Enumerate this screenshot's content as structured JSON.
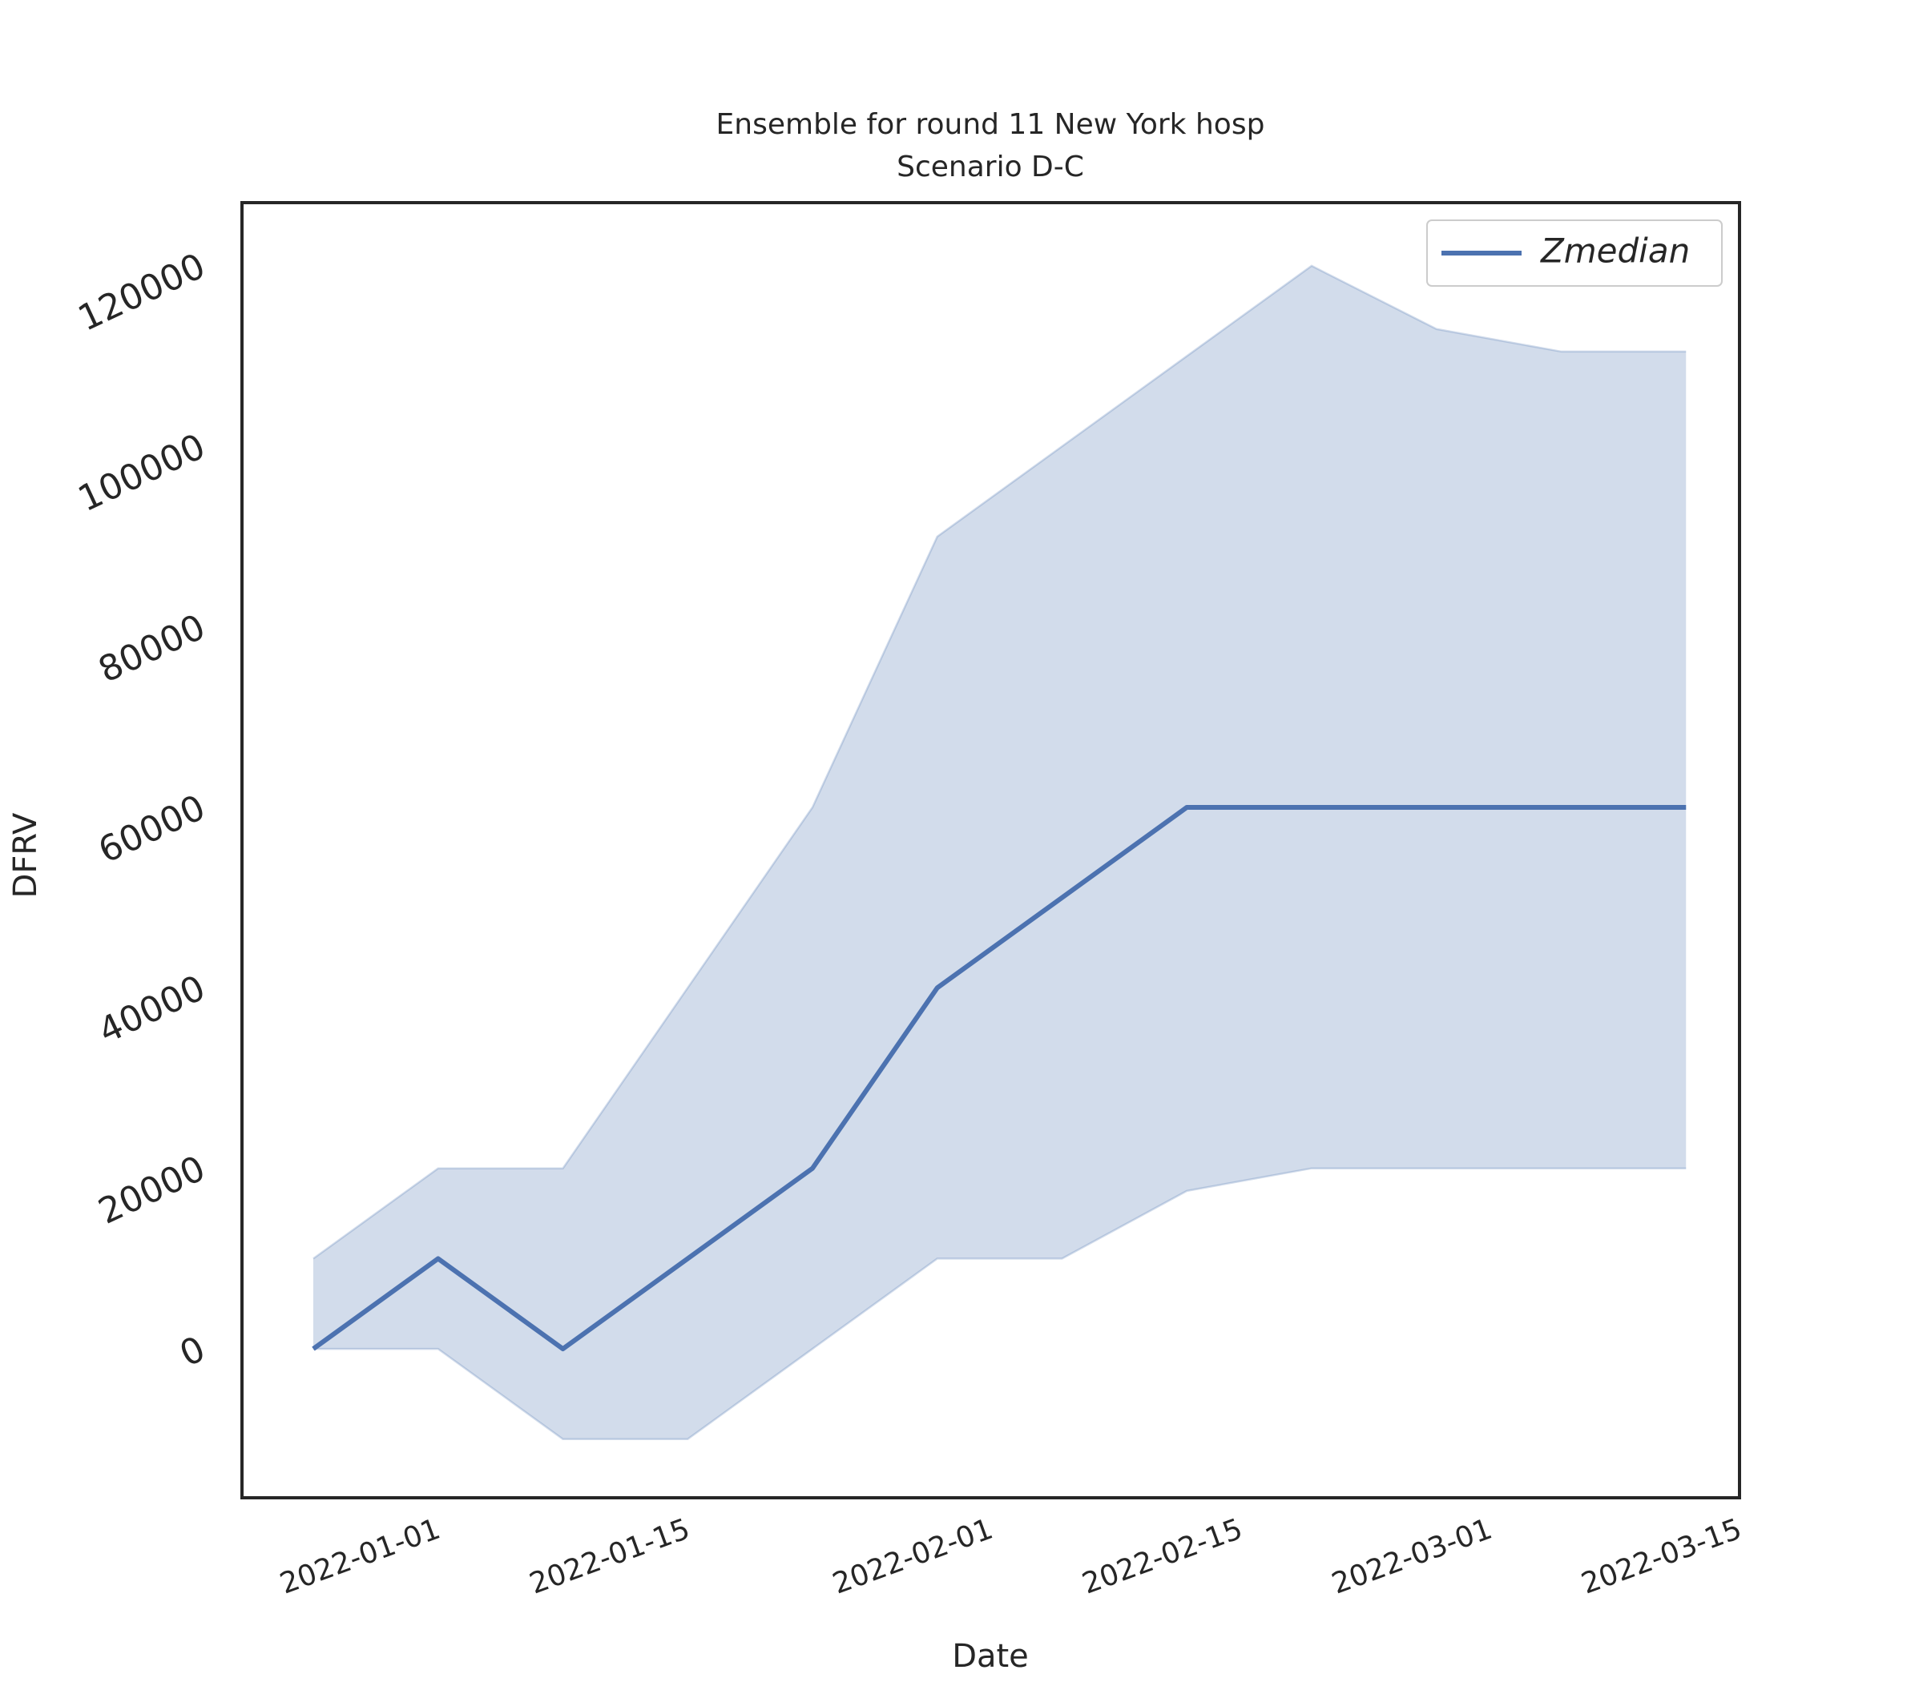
{
  "chart_data": {
    "type": "line",
    "title": "Ensemble for round 11 New York hosp",
    "subtitle": "Scenario D-C",
    "x_label": "Date",
    "y_label": "DFRV",
    "x": [
      "2021-12-28",
      "2022-01-04",
      "2022-01-11",
      "2022-01-18",
      "2022-01-25",
      "2022-02-01",
      "2022-02-08",
      "2022-02-15",
      "2022-02-22",
      "2022-03-01",
      "2022-03-08",
      "2022-03-15"
    ],
    "series": [
      {
        "name": "Zmedian",
        "color": "#4c72b0",
        "values": [
          0,
          10000,
          0,
          10000,
          20000,
          40000,
          50000,
          60000,
          60000,
          60000,
          60000,
          60000
        ]
      }
    ],
    "band": {
      "color": "#4c72b0",
      "upper": [
        10000,
        20000,
        20000,
        40000,
        60000,
        90000,
        100000,
        110000,
        120000,
        113000,
        110500,
        110500
      ],
      "lower": [
        0,
        0,
        -10000,
        -10000,
        0,
        10000,
        10000,
        17500,
        20000,
        20000,
        20000,
        20000
      ]
    },
    "xlim": [
      "2021-12-24",
      "2022-03-18"
    ],
    "xticks": [
      "2022-01-01",
      "2022-01-15",
      "2022-02-01",
      "2022-02-15",
      "2022-03-01",
      "2022-03-15"
    ],
    "ylim": [
      -16500,
      127000
    ],
    "yticks": [
      0,
      20000,
      40000,
      60000,
      80000,
      100000,
      120000
    ],
    "legend": "upper right",
    "grid": false
  }
}
